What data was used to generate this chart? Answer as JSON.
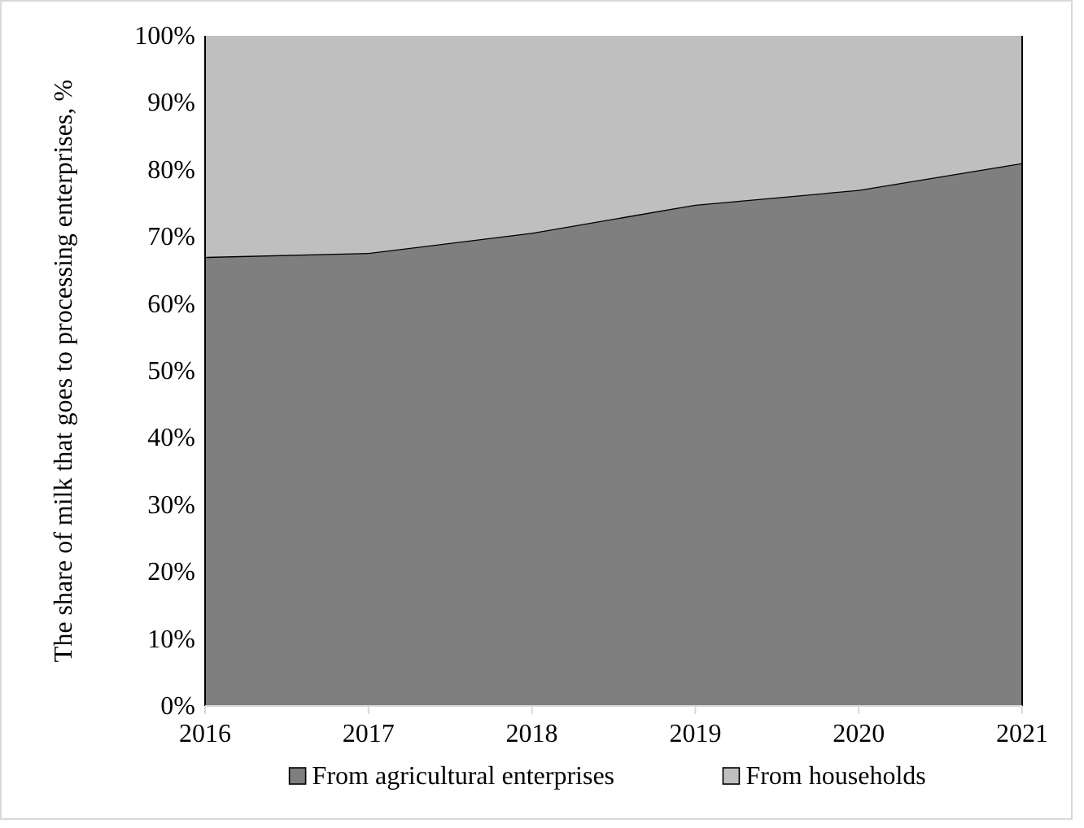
{
  "chart_data": {
    "type": "area",
    "stacked": true,
    "ylabel": "The share of milk that goes to processing enterprises, %",
    "categories": [
      "2016",
      "2017",
      "2018",
      "2019",
      "2020",
      "2021"
    ],
    "series": [
      {
        "name": "From agricultural enterprises",
        "color": "#7f7f7f",
        "values": [
          67.0,
          67.6,
          70.6,
          74.8,
          77.0,
          81.0
        ]
      },
      {
        "name": "From households",
        "color": "#bfbfbf",
        "values": [
          33.0,
          32.4,
          29.4,
          25.2,
          23.0,
          19.0
        ]
      }
    ],
    "ylim": [
      0,
      100
    ],
    "yticks": [
      {
        "value": 0,
        "label": "0%"
      },
      {
        "value": 10,
        "label": "10%"
      },
      {
        "value": 20,
        "label": "20%"
      },
      {
        "value": 30,
        "label": "30%"
      },
      {
        "value": 40,
        "label": "40%"
      },
      {
        "value": 50,
        "label": "50%"
      },
      {
        "value": 60,
        "label": "60%"
      },
      {
        "value": 70,
        "label": "70%"
      },
      {
        "value": 80,
        "label": "80%"
      },
      {
        "value": 90,
        "label": "90%"
      },
      {
        "value": 100,
        "label": "100%"
      }
    ],
    "legend": "bottom"
  }
}
